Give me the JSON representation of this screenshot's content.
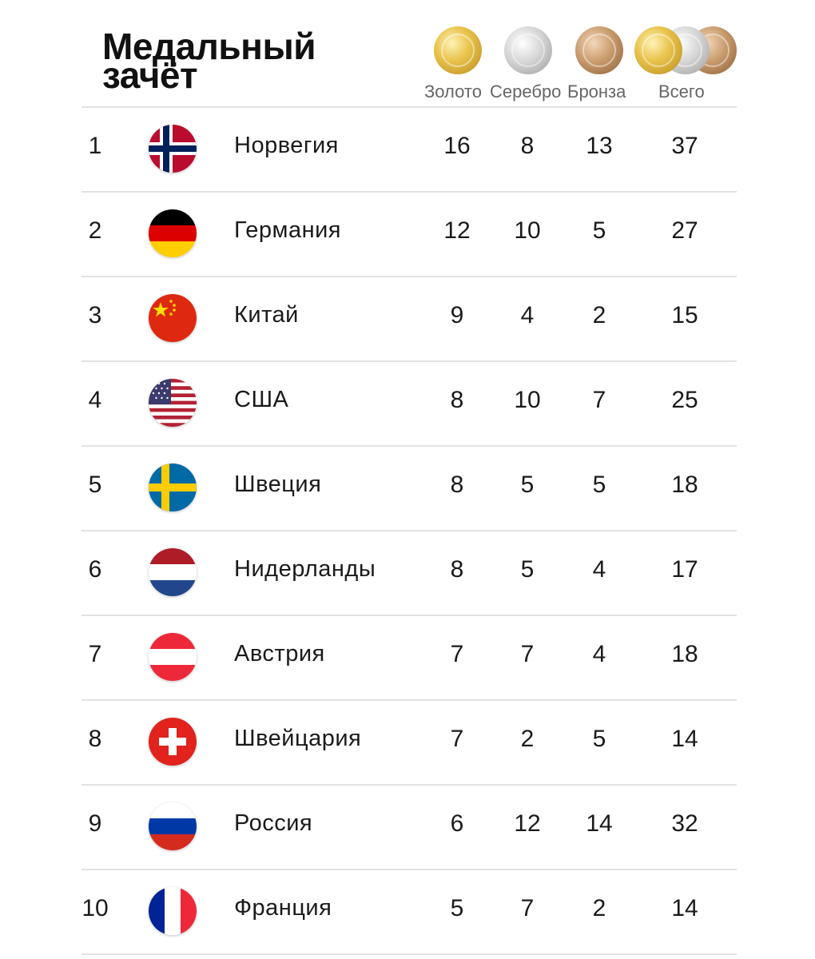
{
  "title": {
    "line1": "Медальный",
    "line2": "зачёт"
  },
  "columns": {
    "gold": "Золото",
    "silver": "Серебро",
    "bronze": "Бронза",
    "total": "Всего"
  },
  "medal_colors": {
    "gold": "#e9c44d",
    "silver": "#d5d5d5",
    "bronze": "#c89a6c"
  },
  "rows": [
    {
      "rank": "1",
      "flag": "norway-flag-icon",
      "country": "Норвегия",
      "gold": "16",
      "silver": "8",
      "bronze": "13",
      "total": "37"
    },
    {
      "rank": "2",
      "flag": "germany-flag-icon",
      "country": "Германия",
      "gold": "12",
      "silver": "10",
      "bronze": "5",
      "total": "27"
    },
    {
      "rank": "3",
      "flag": "china-flag-icon",
      "country": "Китай",
      "gold": "9",
      "silver": "4",
      "bronze": "2",
      "total": "15"
    },
    {
      "rank": "4",
      "flag": "usa-flag-icon",
      "country": "США",
      "gold": "8",
      "silver": "10",
      "bronze": "7",
      "total": "25"
    },
    {
      "rank": "5",
      "flag": "sweden-flag-icon",
      "country": "Швеция",
      "gold": "8",
      "silver": "5",
      "bronze": "5",
      "total": "18"
    },
    {
      "rank": "6",
      "flag": "netherlands-flag-icon",
      "country": "Нидерланды",
      "gold": "8",
      "silver": "5",
      "bronze": "4",
      "total": "17"
    },
    {
      "rank": "7",
      "flag": "austria-flag-icon",
      "country": "Австрия",
      "gold": "7",
      "silver": "7",
      "bronze": "4",
      "total": "18"
    },
    {
      "rank": "8",
      "flag": "switzerland-flag-icon",
      "country": "Швейцария",
      "gold": "7",
      "silver": "2",
      "bronze": "5",
      "total": "14"
    },
    {
      "rank": "9",
      "flag": "russia-flag-icon",
      "country": "Россия",
      "gold": "6",
      "silver": "12",
      "bronze": "14",
      "total": "32"
    },
    {
      "rank": "10",
      "flag": "france-flag-icon",
      "country": "Франция",
      "gold": "5",
      "silver": "7",
      "bronze": "2",
      "total": "14"
    }
  ]
}
